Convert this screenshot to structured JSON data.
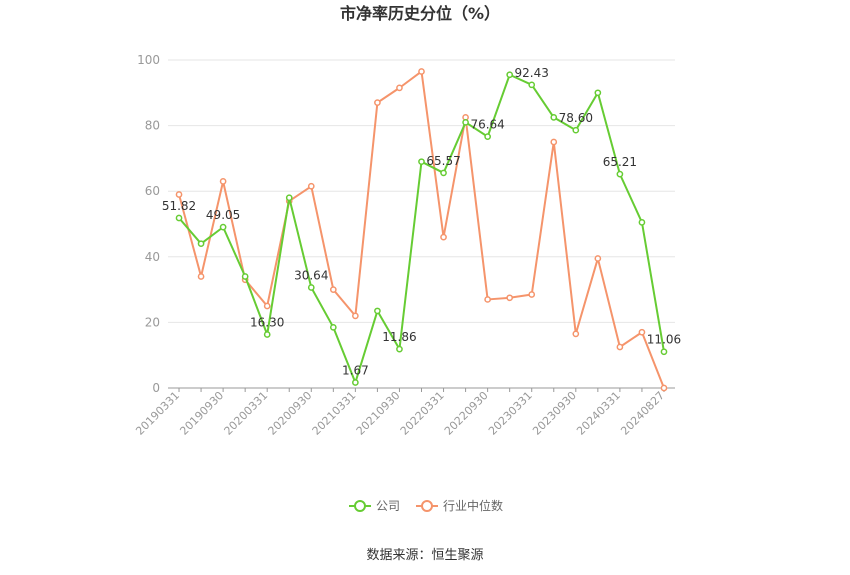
{
  "colors": {
    "company": "#66CC33",
    "industry": "#F5946B",
    "grid": "#E6E6E6",
    "axis": "#999999"
  },
  "source": "数据来源：恒生聚源",
  "chart_data": {
    "type": "line",
    "title": "市净率历史分位（%）",
    "ylim": [
      0,
      100
    ],
    "yticks": [
      0,
      20,
      40,
      60,
      80,
      100
    ],
    "grid": true,
    "legend_position": "bottom",
    "x": [
      "20190331",
      "20190630",
      "20190930",
      "20191231",
      "20200331",
      "20200630",
      "20200930",
      "20201231",
      "20210331",
      "20210630",
      "20210930",
      "20211231",
      "20220331",
      "20220630",
      "20220930",
      "20221231",
      "20230331",
      "20230630",
      "20230930",
      "20231231",
      "20240331",
      "20240630",
      "20240827"
    ],
    "xticks": [
      "20190331",
      "20190930",
      "20200331",
      "20200930",
      "20210331",
      "20210930",
      "20220331",
      "20220930",
      "20230331",
      "20230930",
      "20240331",
      "20240827"
    ],
    "series": [
      {
        "name": "公司",
        "values": [
          51.82,
          44,
          49.05,
          34,
          16.3,
          58,
          30.64,
          18.5,
          1.67,
          23.5,
          11.86,
          69,
          65.57,
          81,
          76.64,
          95.5,
          92.43,
          82.5,
          78.6,
          90,
          65.21,
          50.5,
          11.06
        ],
        "labels": {
          "0": "51.82",
          "2": "49.05",
          "4": "16.30",
          "6": "30.64",
          "8": "1.67",
          "10": "11.86",
          "12": "65.57",
          "14": "76.64",
          "16": "92.43",
          "18": "78.60",
          "20": "65.21",
          "22": "11.06"
        }
      },
      {
        "name": "行业中位数",
        "values": [
          59,
          34,
          63,
          33,
          25,
          57,
          61.5,
          30,
          22,
          87,
          91.5,
          96.5,
          46,
          82.5,
          27,
          27.5,
          28.5,
          75,
          16.5,
          39.5,
          12.5,
          17,
          0
        ]
      }
    ]
  }
}
